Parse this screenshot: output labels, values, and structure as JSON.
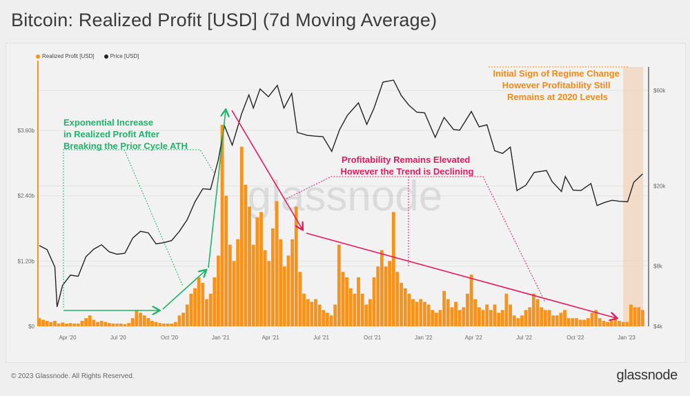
{
  "title": "Bitcoin: Realized Profit [USD] (7d Moving Average)",
  "footer": "© 2023 Glassnode. All Rights Reserved.",
  "logo": "glassnode",
  "watermark": "glassnode",
  "colors": {
    "profit": "#f7931a",
    "price": "#222222",
    "green": "#1fb36b",
    "red": "#e8195a",
    "highlight": "#f1d5bd",
    "annotation_orange": "#f28a16"
  },
  "annotations": {
    "green": [
      "Exponential Increase",
      "in Realized Profit After",
      "Breaking the Prior Cycle ATH"
    ],
    "red": [
      "Profitability Remains Elevated",
      "However the Trend is Declining"
    ],
    "orange": [
      "Initial Sign of Regime Change",
      "However Profitability Still",
      "Remains at 2020 Levels"
    ]
  },
  "chart_data": {
    "type": "bar+line",
    "legend": {
      "placement": "top-left",
      "entries": [
        "Realized Profit [USD]",
        "Price [USD]"
      ]
    },
    "x_ticks": [
      {
        "date": "2020-04-01",
        "label": "Apr '20"
      },
      {
        "date": "2020-07-01",
        "label": "Jul '20"
      },
      {
        "date": "2020-10-01",
        "label": "Oct '20"
      },
      {
        "date": "2021-01-01",
        "label": "Jan '21"
      },
      {
        "date": "2021-04-01",
        "label": "Apr '21"
      },
      {
        "date": "2021-07-01",
        "label": "Jul '21"
      },
      {
        "date": "2021-10-01",
        "label": "Oct '21"
      },
      {
        "date": "2022-01-01",
        "label": "Jan '22"
      },
      {
        "date": "2022-04-01",
        "label": "Apr '22"
      },
      {
        "date": "2022-07-01",
        "label": "Jul '22"
      },
      {
        "date": "2022-10-01",
        "label": "Oct '22"
      },
      {
        "date": "2023-01-01",
        "label": "Jan '23"
      }
    ],
    "left_axis": {
      "scale": "linear",
      "unit": "USD billions",
      "ticks": [
        {
          "v": 0,
          "label": "$0"
        },
        {
          "v": 1.2,
          "label": "$1.20b"
        },
        {
          "v": 2.4,
          "label": "$2.40b"
        },
        {
          "v": 3.6,
          "label": "$3.60b"
        }
      ]
    },
    "right_axis": {
      "scale": "log",
      "ticks": [
        {
          "v": 4000,
          "label": "$4k"
        },
        {
          "v": 8000,
          "label": "$8k"
        },
        {
          "v": 20000,
          "label": "$20k"
        },
        {
          "v": 60000,
          "label": "$60k"
        }
      ]
    },
    "highlight_range": [
      "2022-12-26",
      "2023-01-31"
    ],
    "grid": true,
    "series": [
      {
        "name": "Realized Profit [USD]",
        "type": "bar",
        "unit": "USD billions",
        "points": [
          [
            "2020-02-10",
            0.15
          ],
          [
            "2020-02-17",
            0.12
          ],
          [
            "2020-02-24",
            0.1
          ],
          [
            "2020-03-02",
            0.08
          ],
          [
            "2020-03-09",
            0.1
          ],
          [
            "2020-03-16",
            0.05
          ],
          [
            "2020-03-23",
            0.07
          ],
          [
            "2020-03-30",
            0.05
          ],
          [
            "2020-04-06",
            0.06
          ],
          [
            "2020-04-13",
            0.05
          ],
          [
            "2020-04-20",
            0.05
          ],
          [
            "2020-04-27",
            0.1
          ],
          [
            "2020-05-04",
            0.15
          ],
          [
            "2020-05-11",
            0.2
          ],
          [
            "2020-05-18",
            0.12
          ],
          [
            "2020-05-25",
            0.08
          ],
          [
            "2020-06-01",
            0.1
          ],
          [
            "2020-06-08",
            0.08
          ],
          [
            "2020-06-15",
            0.06
          ],
          [
            "2020-06-22",
            0.05
          ],
          [
            "2020-06-29",
            0.05
          ],
          [
            "2020-07-06",
            0.05
          ],
          [
            "2020-07-13",
            0.04
          ],
          [
            "2020-07-20",
            0.06
          ],
          [
            "2020-07-27",
            0.15
          ],
          [
            "2020-08-03",
            0.3
          ],
          [
            "2020-08-10",
            0.25
          ],
          [
            "2020-08-17",
            0.2
          ],
          [
            "2020-08-24",
            0.15
          ],
          [
            "2020-08-31",
            0.1
          ],
          [
            "2020-09-07",
            0.08
          ],
          [
            "2020-09-14",
            0.06
          ],
          [
            "2020-09-21",
            0.05
          ],
          [
            "2020-09-28",
            0.05
          ],
          [
            "2020-10-05",
            0.05
          ],
          [
            "2020-10-12",
            0.08
          ],
          [
            "2020-10-19",
            0.2
          ],
          [
            "2020-10-26",
            0.25
          ],
          [
            "2020-11-02",
            0.4
          ],
          [
            "2020-11-09",
            0.6
          ],
          [
            "2020-11-16",
            0.7
          ],
          [
            "2020-11-23",
            0.9
          ],
          [
            "2020-11-30",
            0.8
          ],
          [
            "2020-12-07",
            0.5
          ],
          [
            "2020-12-14",
            0.6
          ],
          [
            "2020-12-21",
            0.9
          ],
          [
            "2020-12-28",
            1.3
          ],
          [
            "2021-01-04",
            3.7
          ],
          [
            "2021-01-11",
            2.4
          ],
          [
            "2021-01-18",
            1.5
          ],
          [
            "2021-01-25",
            1.2
          ],
          [
            "2021-02-01",
            1.6
          ],
          [
            "2021-02-08",
            3.3
          ],
          [
            "2021-02-15",
            2.6
          ],
          [
            "2021-02-22",
            2.2
          ],
          [
            "2021-03-01",
            1.5
          ],
          [
            "2021-03-08",
            2.0
          ],
          [
            "2021-03-15",
            2.1
          ],
          [
            "2021-03-22",
            1.4
          ],
          [
            "2021-03-29",
            1.2
          ],
          [
            "2021-04-05",
            1.8
          ],
          [
            "2021-04-12",
            2.3
          ],
          [
            "2021-04-19",
            1.6
          ],
          [
            "2021-04-26",
            1.1
          ],
          [
            "2021-05-03",
            1.3
          ],
          [
            "2021-05-10",
            1.6
          ],
          [
            "2021-05-17",
            2.2
          ],
          [
            "2021-05-24",
            1.0
          ],
          [
            "2021-05-31",
            0.6
          ],
          [
            "2021-06-07",
            0.5
          ],
          [
            "2021-06-14",
            0.45
          ],
          [
            "2021-06-21",
            0.5
          ],
          [
            "2021-06-28",
            0.4
          ],
          [
            "2021-07-05",
            0.3
          ],
          [
            "2021-07-12",
            0.25
          ],
          [
            "2021-07-19",
            0.2
          ],
          [
            "2021-07-26",
            0.4
          ],
          [
            "2021-08-02",
            1.5
          ],
          [
            "2021-08-09",
            1.0
          ],
          [
            "2021-08-16",
            0.9
          ],
          [
            "2021-08-23",
            0.7
          ],
          [
            "2021-08-30",
            0.6
          ],
          [
            "2021-09-06",
            0.9
          ],
          [
            "2021-09-13",
            0.6
          ],
          [
            "2021-09-20",
            0.4
          ],
          [
            "2021-09-27",
            0.5
          ],
          [
            "2021-10-04",
            0.9
          ],
          [
            "2021-10-11",
            1.1
          ],
          [
            "2021-10-18",
            1.4
          ],
          [
            "2021-10-25",
            1.1
          ],
          [
            "2021-11-01",
            1.2
          ],
          [
            "2021-11-08",
            2.1
          ],
          [
            "2021-11-15",
            1.0
          ],
          [
            "2021-11-22",
            0.8
          ],
          [
            "2021-11-29",
            0.7
          ],
          [
            "2021-12-06",
            0.6
          ],
          [
            "2021-12-13",
            0.5
          ],
          [
            "2021-12-20",
            0.45
          ],
          [
            "2021-12-27",
            0.5
          ],
          [
            "2022-01-03",
            0.45
          ],
          [
            "2022-01-10",
            0.4
          ],
          [
            "2022-01-17",
            0.3
          ],
          [
            "2022-01-24",
            0.25
          ],
          [
            "2022-01-31",
            0.3
          ],
          [
            "2022-02-07",
            0.65
          ],
          [
            "2022-02-14",
            0.5
          ],
          [
            "2022-02-21",
            0.35
          ],
          [
            "2022-02-28",
            0.45
          ],
          [
            "2022-03-07",
            0.3
          ],
          [
            "2022-03-14",
            0.35
          ],
          [
            "2022-03-21",
            0.6
          ],
          [
            "2022-03-28",
            0.95
          ],
          [
            "2022-04-04",
            0.5
          ],
          [
            "2022-04-11",
            0.35
          ],
          [
            "2022-04-18",
            0.3
          ],
          [
            "2022-04-25",
            0.4
          ],
          [
            "2022-05-02",
            0.3
          ],
          [
            "2022-05-09",
            0.4
          ],
          [
            "2022-05-16",
            0.25
          ],
          [
            "2022-05-23",
            0.3
          ],
          [
            "2022-05-30",
            0.6
          ],
          [
            "2022-06-06",
            0.4
          ],
          [
            "2022-06-13",
            0.2
          ],
          [
            "2022-06-20",
            0.15
          ],
          [
            "2022-06-27",
            0.2
          ],
          [
            "2022-07-04",
            0.3
          ],
          [
            "2022-07-11",
            0.35
          ],
          [
            "2022-07-18",
            0.6
          ],
          [
            "2022-07-25",
            0.5
          ],
          [
            "2022-08-01",
            0.35
          ],
          [
            "2022-08-08",
            0.3
          ],
          [
            "2022-08-15",
            0.3
          ],
          [
            "2022-08-22",
            0.2
          ],
          [
            "2022-08-29",
            0.2
          ],
          [
            "2022-09-05",
            0.25
          ],
          [
            "2022-09-12",
            0.3
          ],
          [
            "2022-09-19",
            0.15
          ],
          [
            "2022-09-26",
            0.15
          ],
          [
            "2022-10-03",
            0.15
          ],
          [
            "2022-10-10",
            0.12
          ],
          [
            "2022-10-17",
            0.12
          ],
          [
            "2022-10-24",
            0.15
          ],
          [
            "2022-10-31",
            0.25
          ],
          [
            "2022-11-07",
            0.3
          ],
          [
            "2022-11-14",
            0.15
          ],
          [
            "2022-11-21",
            0.1
          ],
          [
            "2022-11-28",
            0.08
          ],
          [
            "2022-12-05",
            0.1
          ],
          [
            "2022-12-12",
            0.15
          ],
          [
            "2022-12-19",
            0.1
          ],
          [
            "2022-12-26",
            0.08
          ],
          [
            "2023-01-02",
            0.08
          ],
          [
            "2023-01-09",
            0.4
          ],
          [
            "2023-01-16",
            0.35
          ],
          [
            "2023-01-23",
            0.35
          ],
          [
            "2023-01-30",
            0.3
          ]
        ]
      },
      {
        "name": "Price [USD]",
        "type": "line",
        "unit": "USD",
        "points": [
          [
            "2020-02-10",
            10100
          ],
          [
            "2020-02-24",
            9650
          ],
          [
            "2020-03-09",
            7900
          ],
          [
            "2020-03-13",
            5000
          ],
          [
            "2020-03-23",
            6400
          ],
          [
            "2020-04-06",
            7200
          ],
          [
            "2020-04-20",
            7100
          ],
          [
            "2020-05-04",
            8900
          ],
          [
            "2020-05-18",
            9700
          ],
          [
            "2020-06-01",
            10200
          ],
          [
            "2020-06-15",
            9400
          ],
          [
            "2020-06-29",
            9150
          ],
          [
            "2020-07-13",
            9250
          ],
          [
            "2020-07-27",
            11000
          ],
          [
            "2020-08-10",
            11900
          ],
          [
            "2020-08-24",
            11700
          ],
          [
            "2020-09-07",
            10300
          ],
          [
            "2020-09-21",
            10450
          ],
          [
            "2020-10-05",
            10700
          ],
          [
            "2020-10-19",
            11900
          ],
          [
            "2020-11-02",
            13600
          ],
          [
            "2020-11-16",
            16700
          ],
          [
            "2020-11-30",
            19400
          ],
          [
            "2020-12-14",
            19250
          ],
          [
            "2020-12-28",
            27000
          ],
          [
            "2021-01-08",
            40000
          ],
          [
            "2021-01-22",
            32000
          ],
          [
            "2021-02-08",
            46000
          ],
          [
            "2021-02-21",
            57000
          ],
          [
            "2021-03-01",
            49000
          ],
          [
            "2021-03-13",
            61000
          ],
          [
            "2021-03-28",
            55800
          ],
          [
            "2021-04-13",
            63500
          ],
          [
            "2021-04-25",
            49000
          ],
          [
            "2021-05-09",
            58000
          ],
          [
            "2021-05-19",
            37000
          ],
          [
            "2021-06-06",
            35800
          ],
          [
            "2021-06-20",
            35500
          ],
          [
            "2021-07-04",
            35300
          ],
          [
            "2021-07-20",
            29800
          ],
          [
            "2021-08-03",
            38200
          ],
          [
            "2021-08-17",
            45000
          ],
          [
            "2021-09-06",
            52000
          ],
          [
            "2021-09-21",
            40600
          ],
          [
            "2021-10-04",
            49000
          ],
          [
            "2021-10-20",
            66000
          ],
          [
            "2021-11-08",
            67500
          ],
          [
            "2021-11-22",
            56500
          ],
          [
            "2021-12-06",
            50500
          ],
          [
            "2021-12-20",
            46700
          ],
          [
            "2022-01-03",
            46400
          ],
          [
            "2022-01-22",
            35000
          ],
          [
            "2022-02-07",
            44000
          ],
          [
            "2022-02-24",
            38300
          ],
          [
            "2022-03-07",
            38000
          ],
          [
            "2022-03-28",
            47100
          ],
          [
            "2022-04-11",
            39500
          ],
          [
            "2022-04-25",
            40400
          ],
          [
            "2022-05-09",
            30000
          ],
          [
            "2022-05-23",
            29100
          ],
          [
            "2022-06-06",
            31300
          ],
          [
            "2022-06-18",
            19000
          ],
          [
            "2022-07-04",
            20200
          ],
          [
            "2022-07-19",
            23400
          ],
          [
            "2022-08-10",
            23900
          ],
          [
            "2022-08-20",
            21100
          ],
          [
            "2022-09-06",
            18800
          ],
          [
            "2022-09-13",
            22300
          ],
          [
            "2022-09-27",
            19100
          ],
          [
            "2022-10-11",
            19000
          ],
          [
            "2022-10-29",
            20600
          ],
          [
            "2022-11-09",
            16000
          ],
          [
            "2022-11-23",
            16600
          ],
          [
            "2022-12-06",
            17000
          ],
          [
            "2022-12-20",
            16800
          ],
          [
            "2023-01-03",
            16700
          ],
          [
            "2023-01-14",
            20900
          ],
          [
            "2023-01-30",
            23000
          ]
        ]
      }
    ]
  }
}
